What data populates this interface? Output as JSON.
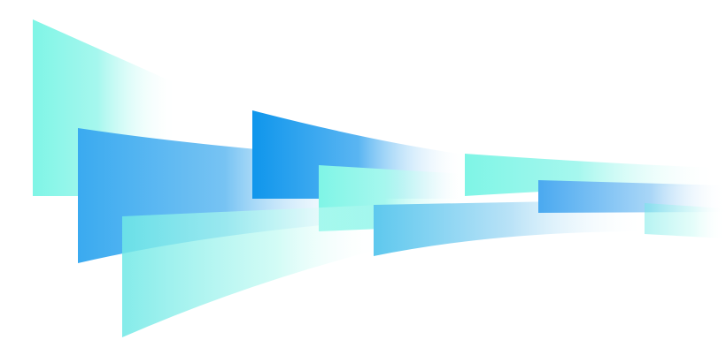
{
  "graphic": {
    "colors": {
      "background": "#ffffff",
      "mint": "#7ff5e6",
      "sky_blue": "#3aaaf0",
      "deep_blue": "#0f96ec",
      "light_blue": "#5ec8ee"
    }
  }
}
